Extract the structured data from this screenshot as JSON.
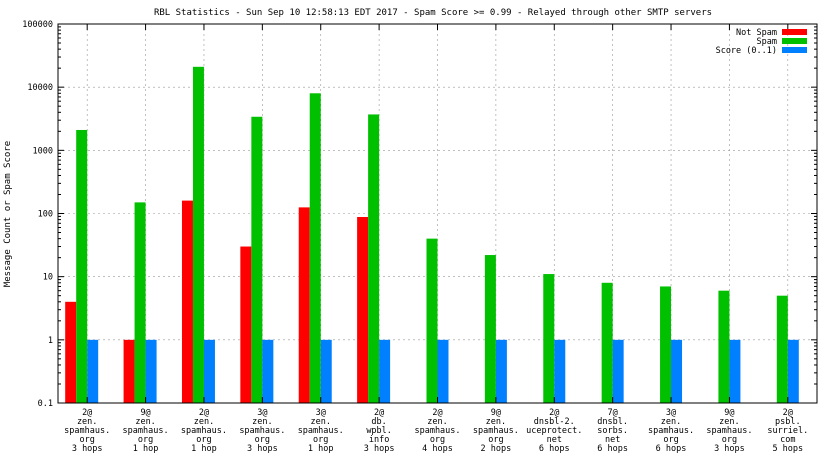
{
  "chart_data": {
    "type": "bar",
    "title": "RBL Statistics - Sun Sep 10 12:58:13 EDT 2017 - Spam Score >= 0.99 - Relayed through other SMTP servers",
    "xlabel": "",
    "ylabel": "Message Count or Spam Score",
    "yscale": "log",
    "ylim": [
      0.1,
      100000
    ],
    "yticks": [
      0.1,
      1,
      10,
      100,
      1000,
      10000,
      100000
    ],
    "ytick_labels": [
      "0.1",
      "1",
      "10",
      "100",
      "1000",
      "10000",
      "100000"
    ],
    "grid": true,
    "legend_position": "top-right",
    "categories": [
      [
        "2@",
        "zen.",
        "spamhaus.",
        "org",
        "3 hops"
      ],
      [
        "9@",
        "zen.",
        "spamhaus.",
        "org",
        "1 hop"
      ],
      [
        "2@",
        "zen.",
        "spamhaus.",
        "org",
        "1 hop"
      ],
      [
        "3@",
        "zen.",
        "spamhaus.",
        "org",
        "3 hops"
      ],
      [
        "3@",
        "zen.",
        "spamhaus.",
        "org",
        "1 hop"
      ],
      [
        "2@",
        "db.",
        "wpbl.",
        "info",
        "3 hops"
      ],
      [
        "2@",
        "zen.",
        "spamhaus.",
        "org",
        "4 hops"
      ],
      [
        "9@",
        "zen.",
        "spamhaus.",
        "org",
        "2 hops"
      ],
      [
        "2@",
        "dnsbl-2.",
        "uceprotect.",
        "net",
        "6 hops"
      ],
      [
        "7@",
        "dnsbl.",
        "sorbs.",
        "net",
        "6 hops"
      ],
      [
        "3@",
        "zen.",
        "spamhaus.",
        "org",
        "6 hops"
      ],
      [
        "9@",
        "zen.",
        "spamhaus.",
        "org",
        "3 hops"
      ],
      [
        "2@",
        "psbl.",
        "surriel.",
        "com",
        "5 hops"
      ]
    ],
    "series": [
      {
        "name": "Not Spam",
        "color": "#ff0000",
        "values": [
          4,
          1,
          160,
          30,
          125,
          88,
          null,
          null,
          null,
          null,
          null,
          null,
          null
        ]
      },
      {
        "name": "Spam",
        "color": "#00c000",
        "values": [
          2100,
          150,
          21000,
          3400,
          8000,
          3700,
          40,
          22,
          11,
          8,
          7,
          6,
          5
        ]
      },
      {
        "name": "Score (0..1)",
        "color": "#0080ff",
        "values": [
          1,
          1,
          1,
          1,
          1,
          1,
          1,
          1,
          1,
          1,
          1,
          1,
          1
        ]
      }
    ]
  }
}
